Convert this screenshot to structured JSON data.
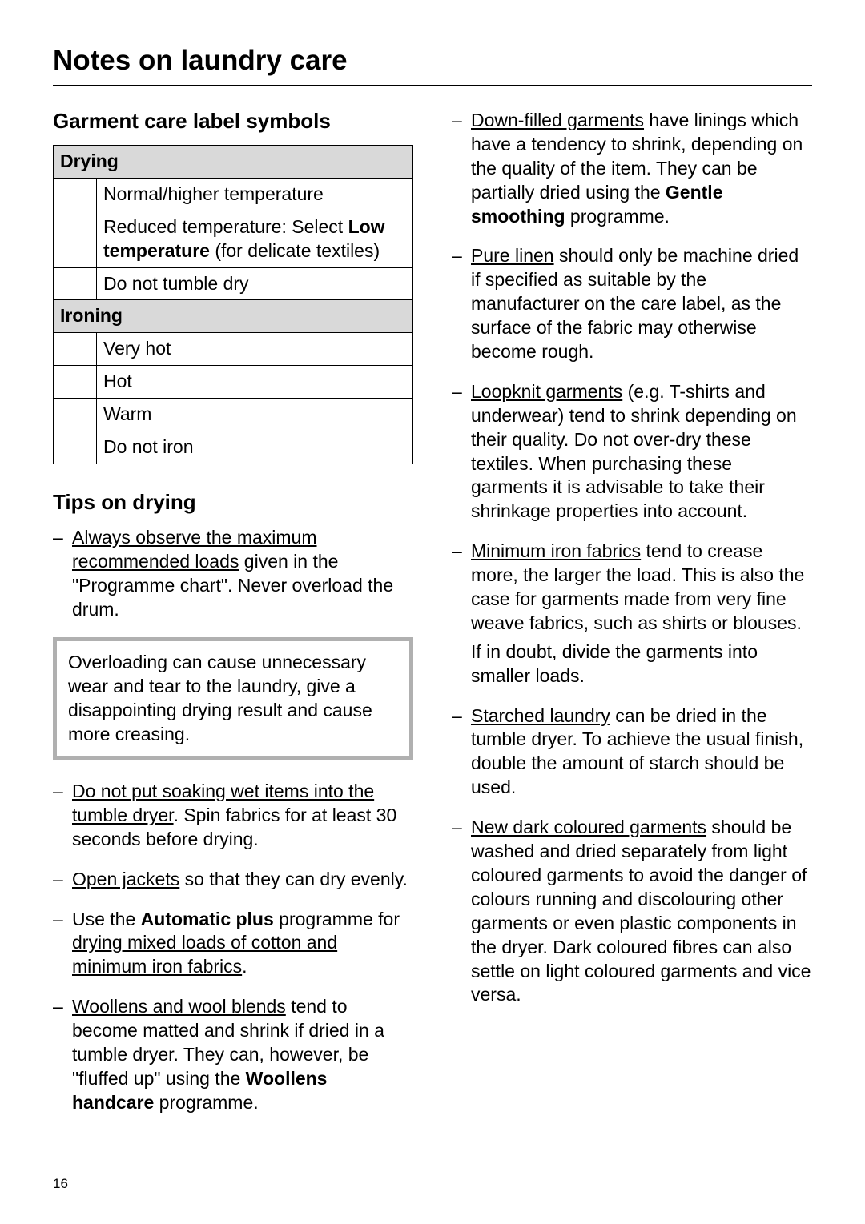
{
  "page": {
    "title": "Notes on laundry care",
    "number": "16"
  },
  "left": {
    "symbols_heading": "Garment care label symbols",
    "table": {
      "drying_header": "Drying",
      "drying_rows": [
        {
          "text_html": "Normal/higher temperature"
        },
        {
          "text_html": "Reduced temperature: Select <b>Low temperature</b> (for delicate textiles)"
        },
        {
          "text_html": "Do not tumble dry"
        }
      ],
      "ironing_header": "Ironing",
      "ironing_rows": [
        {
          "text_html": "Very hot"
        },
        {
          "text_html": "Hot"
        },
        {
          "text_html": "Warm"
        },
        {
          "text_html": "Do not iron"
        }
      ]
    },
    "tips_heading": "Tips on drying",
    "tips_top": [
      "<span class=\"u\">Always observe the maximum recommended loads</span> given in the \"Programme chart\". Never overload the drum."
    ],
    "callout": "Overloading can cause unnecessary wear and tear to the laundry, give a disappointing drying result and cause more creasing.",
    "tips_bottom": [
      "<span class=\"u\">Do not put soaking wet items into the tumble dryer</span>. Spin fabrics for at least 30 seconds before drying.",
      "<span class=\"u\">Open jackets</span> so that they can dry evenly.",
      "Use the <b>Automatic plus</b> programme for <span class=\"u\">drying mixed loads of cotton and minimum iron fabrics</span>.",
      "<span class=\"u\">Woollens and wool blends</span> tend to become matted and shrink if dried in a tumble dryer. They can, however, be \"fluffed up\" using the <b>Woollens handcare</b> programme."
    ]
  },
  "right": {
    "tips": [
      "<span class=\"u\">Down-filled garments</span> have linings which have a tendency to shrink, depending on the quality of the item. They can be partially dried using the <b>Gentle smoothing</b> programme.",
      "<span class=\"u\">Pure linen</span> should only be machine dried if specified as suitable by the manufacturer on the care label, as the surface of the fabric may otherwise become rough.",
      "<span class=\"u\">Loopknit garments</span> (e.g. T-shirts and underwear) tend to shrink depending on their quality. Do not over-dry these textiles. When purchasing these garments it is advisable to take their shrinkage properties into account.",
      "<span class=\"u\">Minimum iron fabrics</span> tend to crease more, the larger the load. This is also the case for garments made from very fine weave fabrics, such as shirts or blouses.<span class=\"para-gap\"></span>If in doubt, divide the garments into smaller loads.",
      "<span class=\"u\">Starched laundry</span> can be dried in the tumble dryer. To achieve the usual finish, double the amount of starch should be used.",
      "<span class=\"u\">New dark coloured garments</span> should be washed and dried separately from light coloured garments to avoid the danger of colours running and discolouring other garments or even plastic components in the dryer. Dark coloured fibres can also settle on light coloured garments and vice versa."
    ]
  }
}
